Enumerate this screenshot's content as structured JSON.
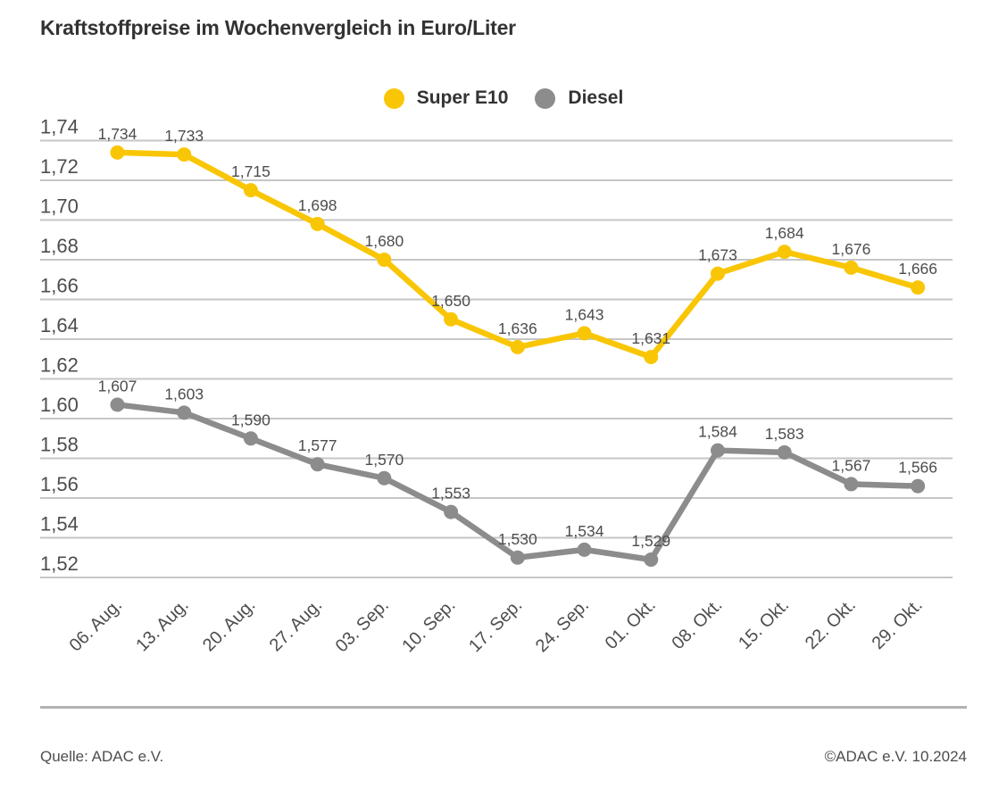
{
  "header": {
    "title": "Kraftstoffpreise im Wochenvergleich in Euro/Liter"
  },
  "chart_data": {
    "type": "line",
    "title": "Kraftstoffpreise im Wochenvergleich in Euro/Liter",
    "ylabel": "Euro/Liter",
    "categories": [
      "06. Aug.",
      "13. Aug.",
      "20. Aug.",
      "27. Aug.",
      "03. Sep.",
      "10. Sep.",
      "17. Sep.",
      "24. Sep.",
      "01. Okt.",
      "08. Okt.",
      "15. Okt.",
      "22. Okt.",
      "29. Okt."
    ],
    "series": [
      {
        "name": "Super E10",
        "color": "#F9C606",
        "values": [
          1.734,
          1.733,
          1.715,
          1.698,
          1.68,
          1.65,
          1.636,
          1.643,
          1.631,
          1.673,
          1.684,
          1.676,
          1.666
        ]
      },
      {
        "name": "Diesel",
        "color": "#8C8C8C",
        "values": [
          1.607,
          1.603,
          1.59,
          1.577,
          1.57,
          1.553,
          1.53,
          1.534,
          1.529,
          1.584,
          1.583,
          1.567,
          1.566
        ]
      }
    ],
    "ylim": [
      1.52,
      1.74
    ],
    "ytick_step": 0.02,
    "ytick_labels": [
      "1,74",
      "1,72",
      "1,70",
      "1,68",
      "1,66",
      "1,64",
      "1,62",
      "1,60",
      "1,58",
      "1,56",
      "1,54",
      "1,52"
    ],
    "decimal_separator": ",",
    "grid": true,
    "gridline_color": "#C6C6C6",
    "axis_label_color": "#4D4D4D",
    "value_label_color": "#4D4D4D",
    "legend_position": "top-center"
  },
  "footer": {
    "source": "Quelle: ADAC e.V.",
    "copyright": "©ADAC e.V. 10.2024"
  }
}
